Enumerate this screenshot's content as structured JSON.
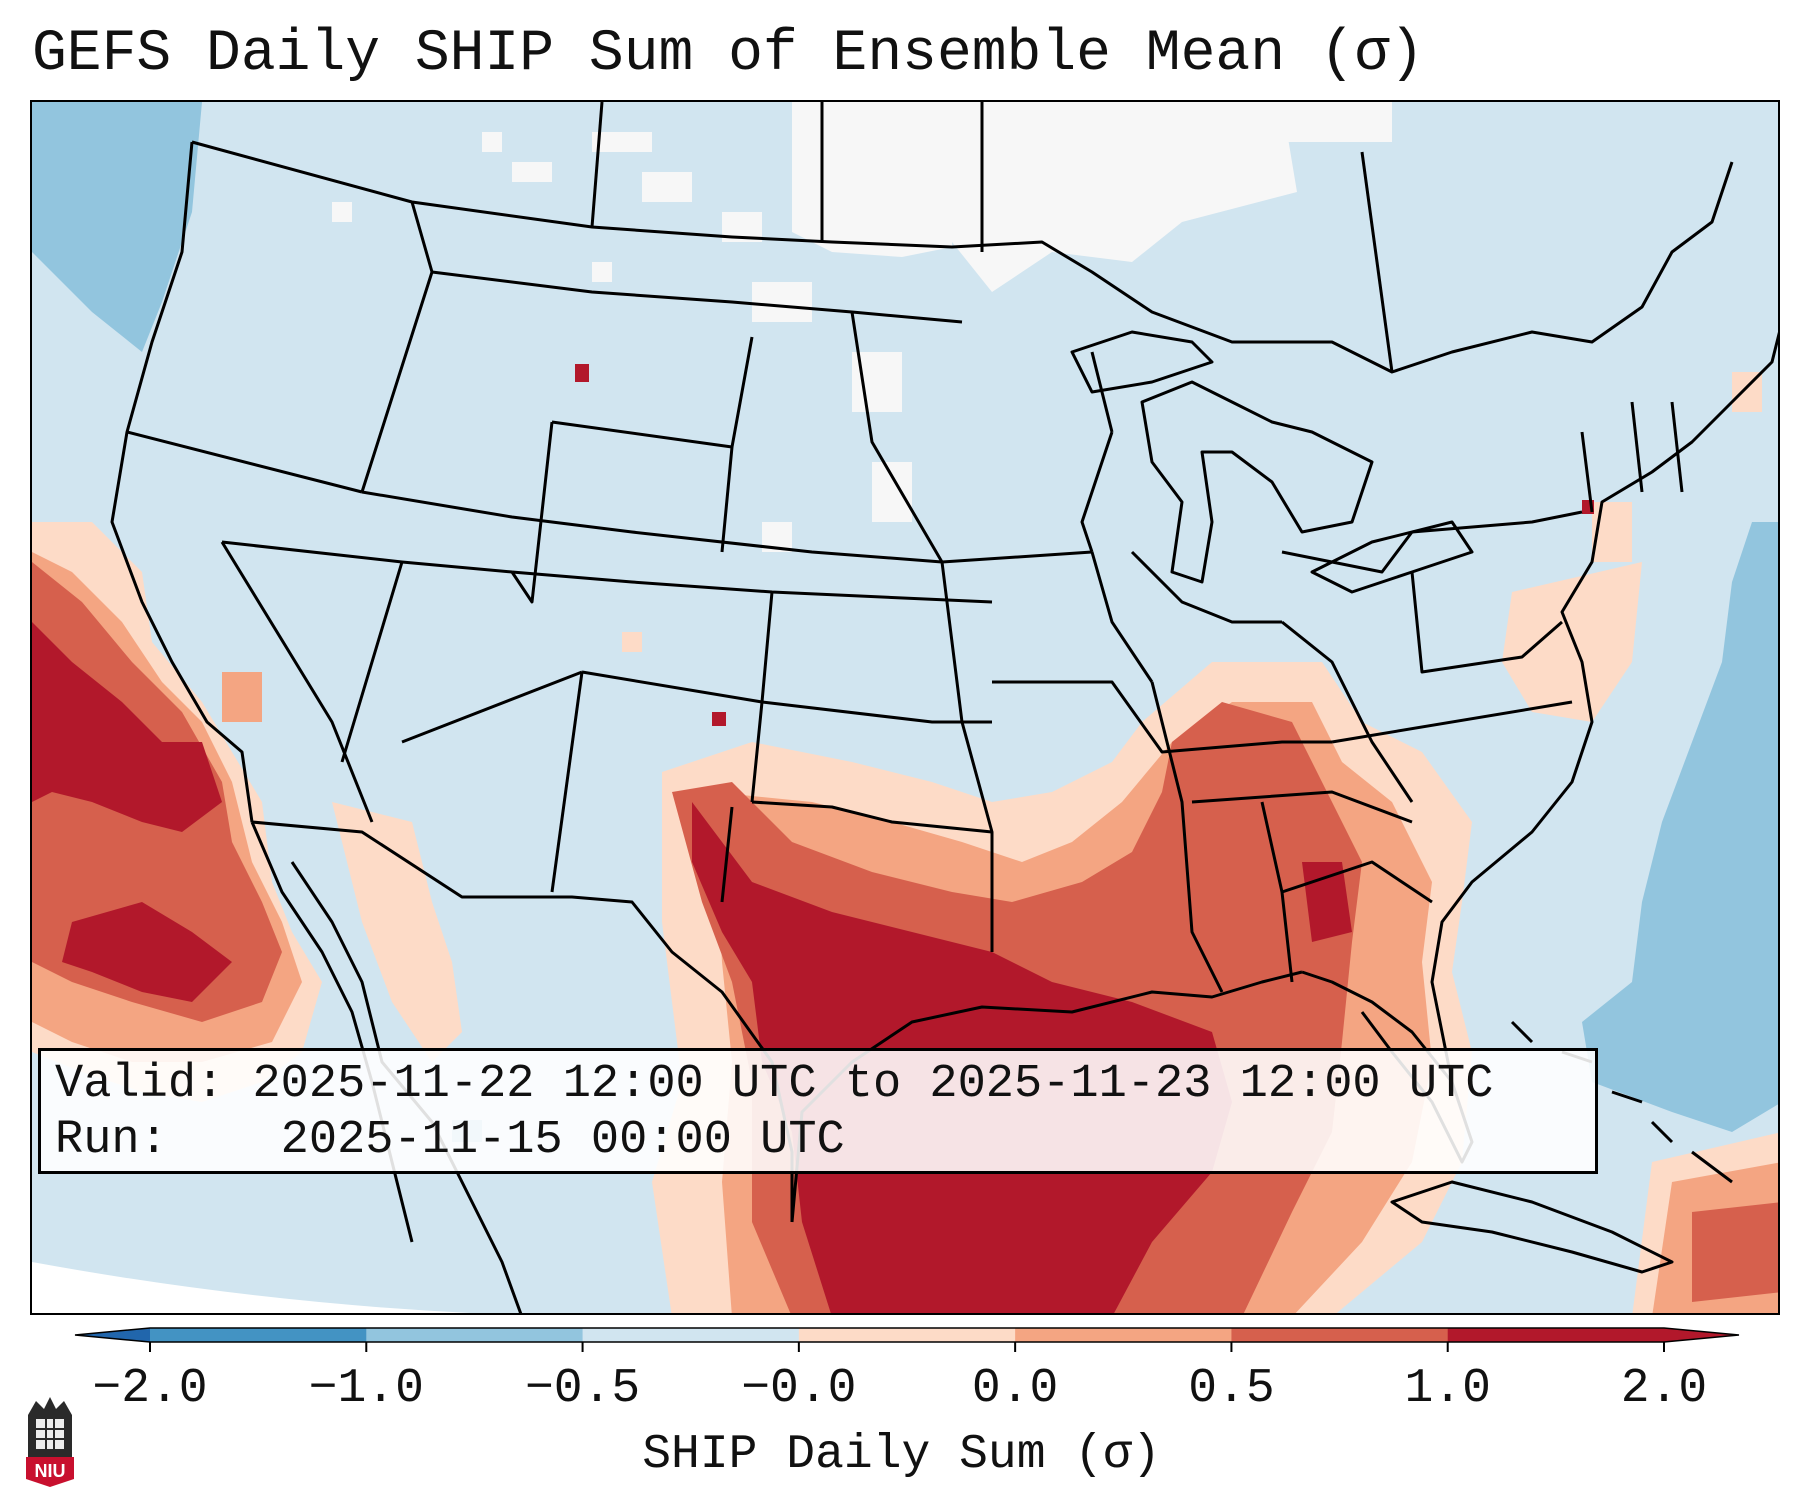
{
  "title": "GEFS Daily SHIP Sum of Ensemble Mean (σ)",
  "info": {
    "valid_label": "Valid:",
    "valid_value": "2025-11-22 12:00 UTC to 2025-11-23 12:00 UTC",
    "run_label": "Run:",
    "run_value": "2025-11-15 00:00 UTC"
  },
  "colorbar": {
    "title": "SHIP Daily Sum (σ)",
    "ticks": [
      "−2.0",
      "−1.0",
      "−0.5",
      "−0.0",
      "0.0",
      "0.5",
      "1.0",
      "2.0"
    ],
    "colors": [
      "#4393c3",
      "#92c5de",
      "#d1e5f0",
      "#f7f7f7",
      "#fddbc7",
      "#f4a582",
      "#d6604d",
      "#b2182b"
    ],
    "extend_low_color": "#2166ac",
    "extend_high_color": "#b2182b"
  },
  "map": {
    "background_color": "#d1e5f0",
    "outside_color": "#ffffff"
  },
  "logo": {
    "text": "NIU",
    "color": "#c8102e"
  }
}
